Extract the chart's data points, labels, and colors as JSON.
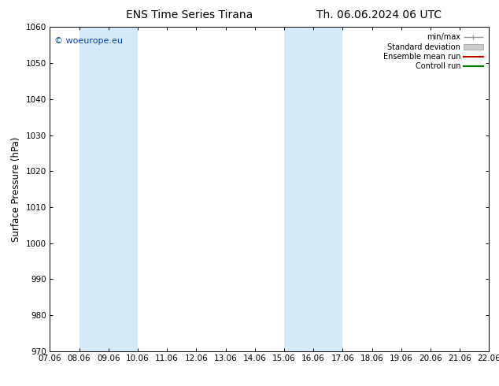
{
  "title_left": "ENS Time Series Tirana",
  "title_right": "Th. 06.06.2024 06 UTC",
  "ylabel": "Surface Pressure (hPa)",
  "ylim": [
    970,
    1060
  ],
  "yticks": [
    970,
    980,
    990,
    1000,
    1010,
    1020,
    1030,
    1040,
    1050,
    1060
  ],
  "xtick_labels": [
    "07.06",
    "08.06",
    "09.06",
    "10.06",
    "11.06",
    "12.06",
    "13.06",
    "14.06",
    "15.06",
    "16.06",
    "17.06",
    "18.06",
    "19.06",
    "20.06",
    "21.06",
    "22.06"
  ],
  "xtick_positions": [
    7.06,
    8.06,
    9.06,
    10.06,
    11.06,
    12.06,
    13.06,
    14.06,
    15.06,
    16.06,
    17.06,
    18.06,
    19.06,
    20.06,
    21.06,
    22.06
  ],
  "xlim_start": 7.06,
  "xlim_end": 22.06,
  "shaded_bands": [
    {
      "x_start": 8.06,
      "x_end": 10.06,
      "color": "#d6eaf8"
    },
    {
      "x_start": 15.06,
      "x_end": 17.06,
      "color": "#d6eaf8"
    }
  ],
  "watermark_text": "© woeurope.eu",
  "watermark_color": "#0044bb",
  "legend_labels": [
    "min/max",
    "Standard deviation",
    "Ensemble mean run",
    "Controll run"
  ],
  "legend_colors_line": [
    "#aaaaaa",
    "#bbbbbb",
    "#cc0000",
    "#007700"
  ],
  "background_color": "#ffffff",
  "tick_fontsize": 7.5,
  "label_fontsize": 8.5,
  "title_fontsize": 10,
  "watermark_fontsize": 8
}
